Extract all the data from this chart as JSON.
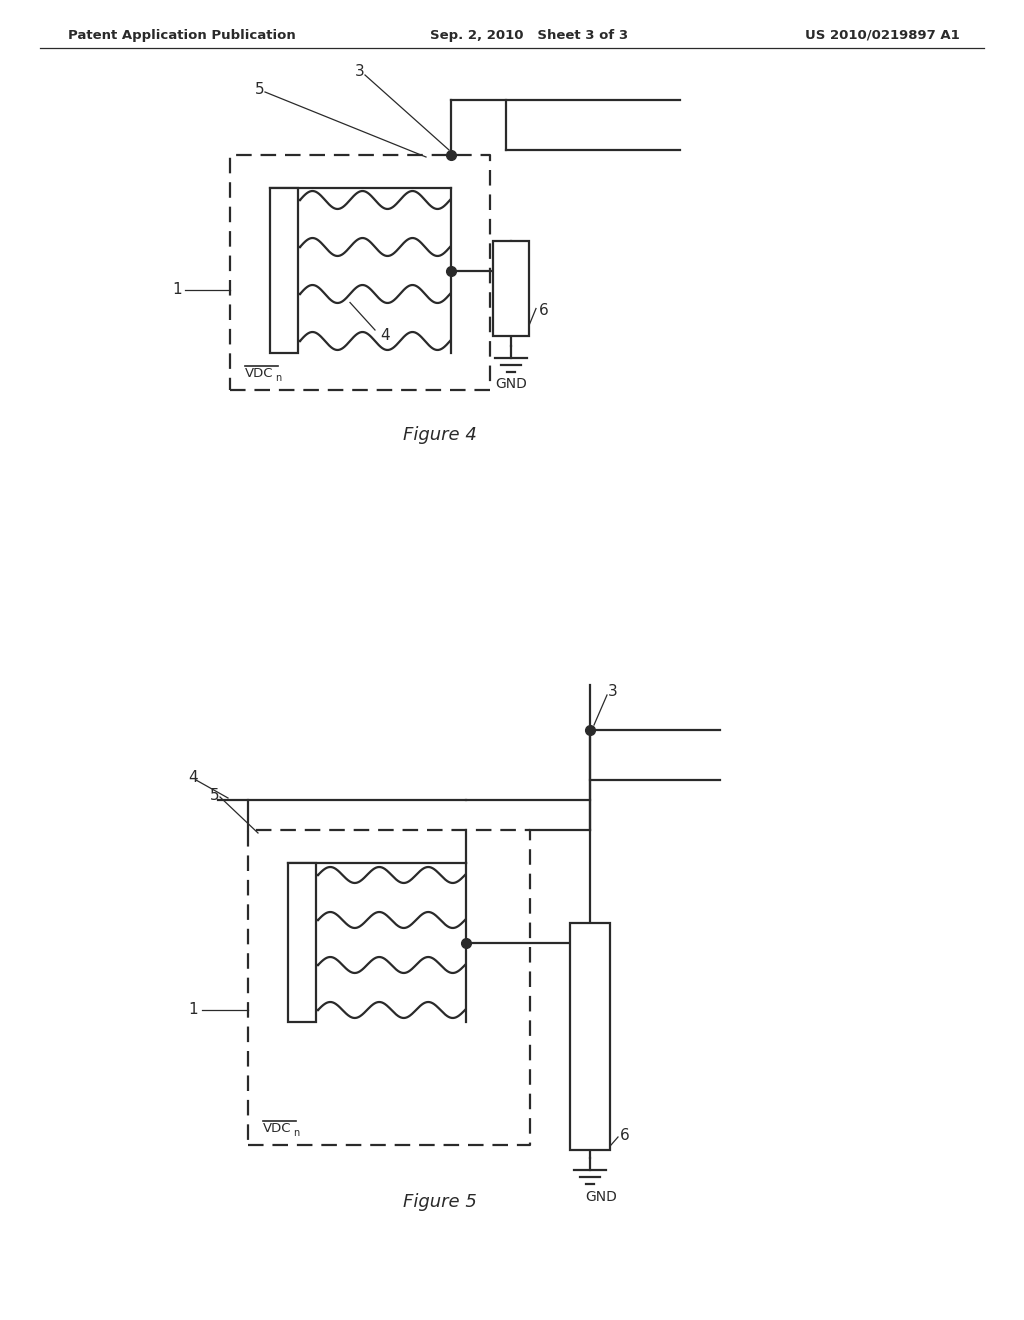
{
  "bg_color": "#ffffff",
  "line_color": "#2a2a2a",
  "header_left": "Patent Application Publication",
  "header_center": "Sep. 2, 2010   Sheet 3 of 3",
  "header_right": "US 2010/0219897 A1",
  "fig4_caption": "Figure 4",
  "fig5_caption": "Figure 5",
  "lw": 1.6,
  "ann_fs": 11,
  "cap_fs": 13,
  "hdr_fs": 9.5
}
